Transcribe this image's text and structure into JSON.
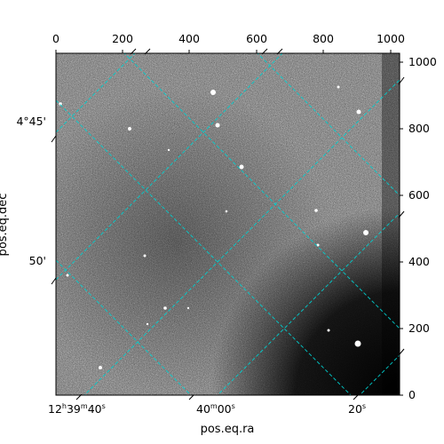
{
  "image_panel": {
    "colormap": "gray",
    "grid_color": "#00ffff",
    "axes": {
      "xlabel": "pos.eq.ra",
      "ylabel": "pos.eq.dec",
      "pixel_x_ticks": [
        "0",
        "200",
        "400",
        "600",
        "800",
        "1000"
      ],
      "pixel_y_ticks": [
        "0",
        "200",
        "400",
        "600",
        "800",
        "1000"
      ],
      "ra_ticks": [
        {
          "h": "12",
          "m": "39",
          "s": "40",
          "text": "12h39m40s"
        },
        {
          "m": "40",
          "s": "00",
          "text": "40m00s"
        },
        {
          "s": "20",
          "text": "20s"
        }
      ],
      "dec_ticks": [
        {
          "text": "4°45'"
        },
        {
          "text": "50'"
        }
      ]
    }
  }
}
